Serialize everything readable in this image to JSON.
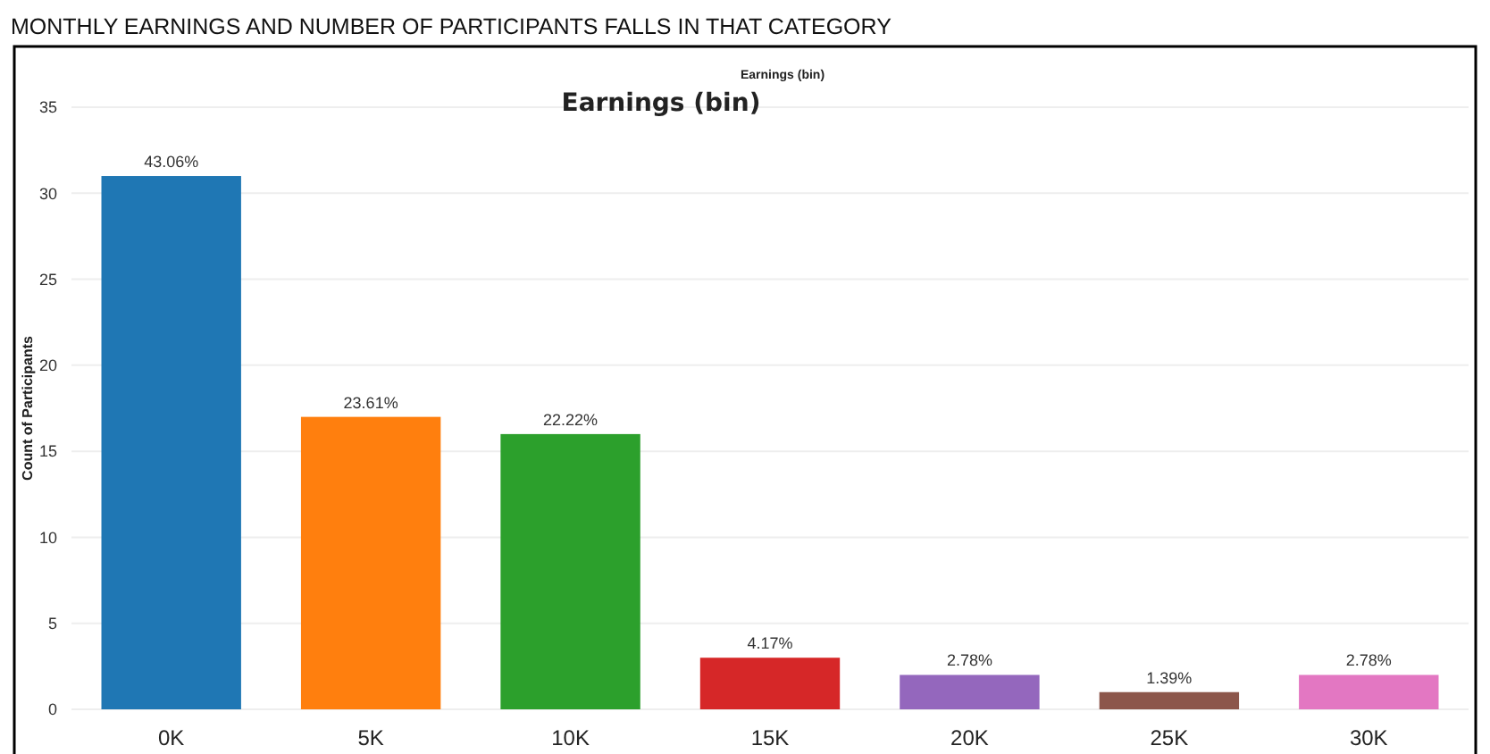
{
  "chart_data": {
    "type": "bar",
    "title": "MONTHLY EARNINGS AND NUMBER OF PARTICIPANTS FALLS IN THAT CATEGORY",
    "xlabel": "Earnings (bin)",
    "ylabel": "Count of Participants",
    "annotations": [
      "Earnings (bin)",
      {
        "text": "43.06%",
        "x": "0K",
        "y": 31
      },
      {
        "text": "23.61%",
        "x": "5K",
        "y": 17
      },
      {
        "text": "22.22%",
        "x": "10K",
        "y": 16
      },
      {
        "text": "4.17%",
        "x": "15K",
        "y": 3
      },
      {
        "text": "2.78%",
        "x": "20K",
        "y": 2
      },
      {
        "text": "1.39%",
        "x": "25K",
        "y": 1
      },
      {
        "text": "2.78%",
        "x": "30K",
        "y": 2
      }
    ],
    "categories": [
      "0K",
      "5K",
      "10K",
      "15K",
      "20K",
      "25K",
      "30K"
    ],
    "values": [
      31,
      17,
      16,
      3,
      2,
      1,
      2
    ],
    "colors": [
      "#1f77b4",
      "#ff7f0e",
      "#2ca02c",
      "#d62728",
      "#9467bd",
      "#8c564b",
      "#e377c2"
    ],
    "ylim": [
      0,
      35
    ],
    "yticks": [
      0,
      5,
      10,
      15,
      20,
      25,
      30,
      35
    ],
    "grid": "y"
  }
}
